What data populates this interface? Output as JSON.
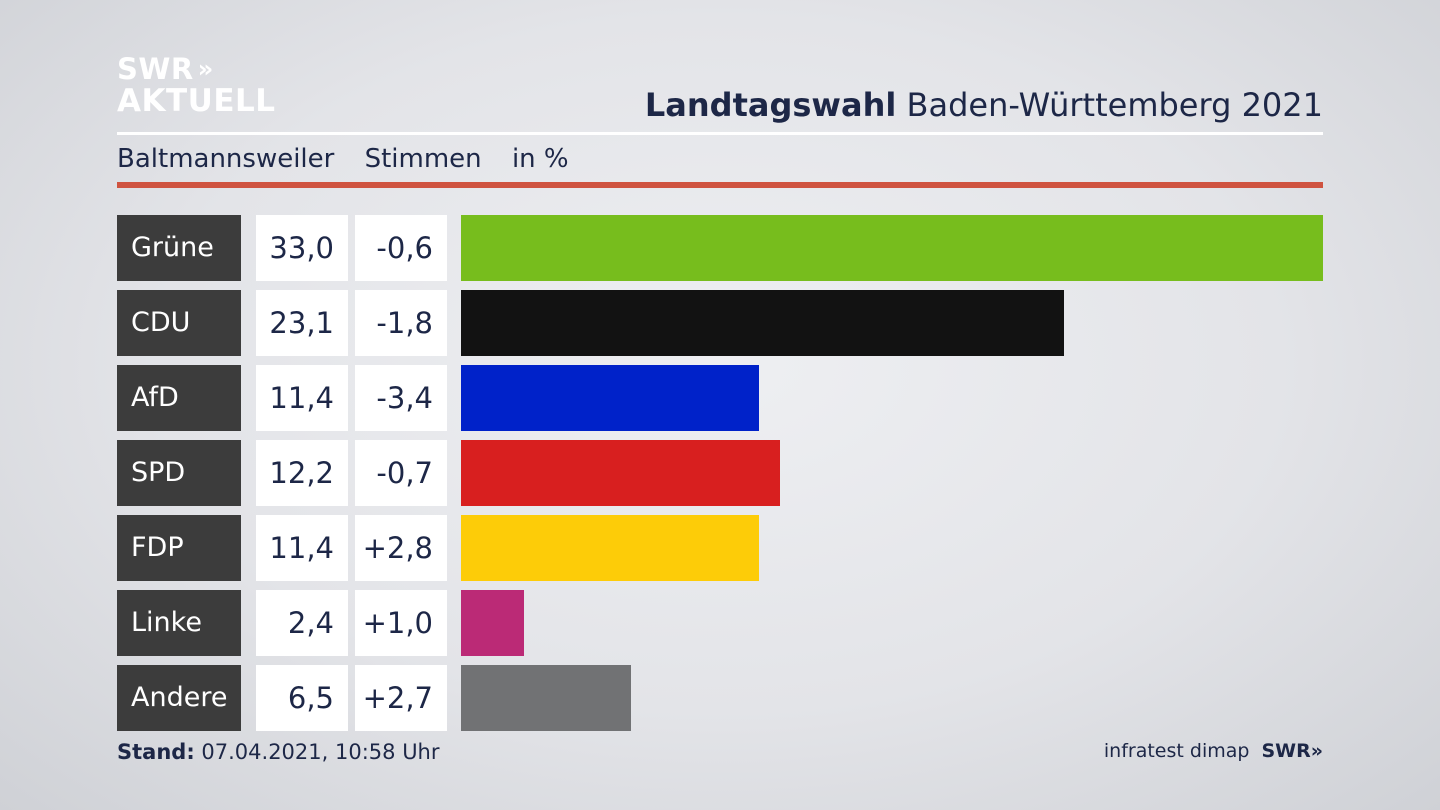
{
  "brand": {
    "line1": "SWR",
    "arrows": "»",
    "line2": "AKTUELL"
  },
  "title": {
    "bold": "Landtagswahl",
    "rest": "Baden-Württemberg 2021"
  },
  "subtitle": {
    "place": "Baltmannsweiler",
    "measure": "Stimmen",
    "unit": "in %"
  },
  "footer": {
    "stand_label": "Stand:",
    "stand_value": "07.04.2021, 10:58 Uhr",
    "source": "infratest dimap",
    "source_brand": "SWR",
    "source_arrows": "»"
  },
  "chart_data": {
    "type": "bar",
    "orientation": "horizontal",
    "categories": [
      "Grüne",
      "CDU",
      "AfD",
      "SPD",
      "FDP",
      "Linke",
      "Andere"
    ],
    "values": [
      33.0,
      23.1,
      11.4,
      12.2,
      11.4,
      2.4,
      6.5
    ],
    "value_labels": [
      "33,0",
      "23,1",
      "11,4",
      "12,2",
      "11,4",
      "2,4",
      "6,5"
    ],
    "change_labels": [
      "-0,6",
      "-1,8",
      "-3,4",
      "-0,7",
      "+2,8",
      "+1,0",
      "+2,7"
    ],
    "colors": [
      "#77bd1d",
      "#121212",
      "#0022c9",
      "#d81f1f",
      "#fdcc08",
      "#bb2a76",
      "#717274"
    ],
    "xlim": [
      0,
      33.0
    ],
    "grid": false
  }
}
